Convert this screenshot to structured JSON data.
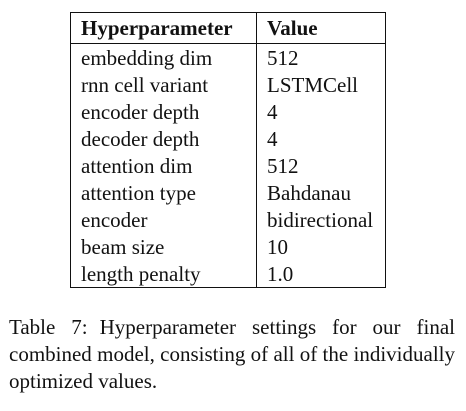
{
  "table": {
    "headers": [
      "Hyperparameter",
      "Value"
    ],
    "rows": [
      {
        "name": "embedding dim",
        "value": "512"
      },
      {
        "name": "rnn cell variant",
        "value": "LSTMCell"
      },
      {
        "name": "encoder depth",
        "value": "4"
      },
      {
        "name": "decoder depth",
        "value": "4"
      },
      {
        "name": "attention dim",
        "value": "512"
      },
      {
        "name": "attention type",
        "value": "Bahdanau"
      },
      {
        "name": "encoder",
        "value": "bidirectional"
      },
      {
        "name": "beam size",
        "value": "10"
      },
      {
        "name": "length penalty",
        "value": "1.0"
      }
    ]
  },
  "caption": {
    "label": "Table 7:",
    "text": "Hyperparameter settings for our final combined model, consisting of all of the individually optimized values."
  }
}
